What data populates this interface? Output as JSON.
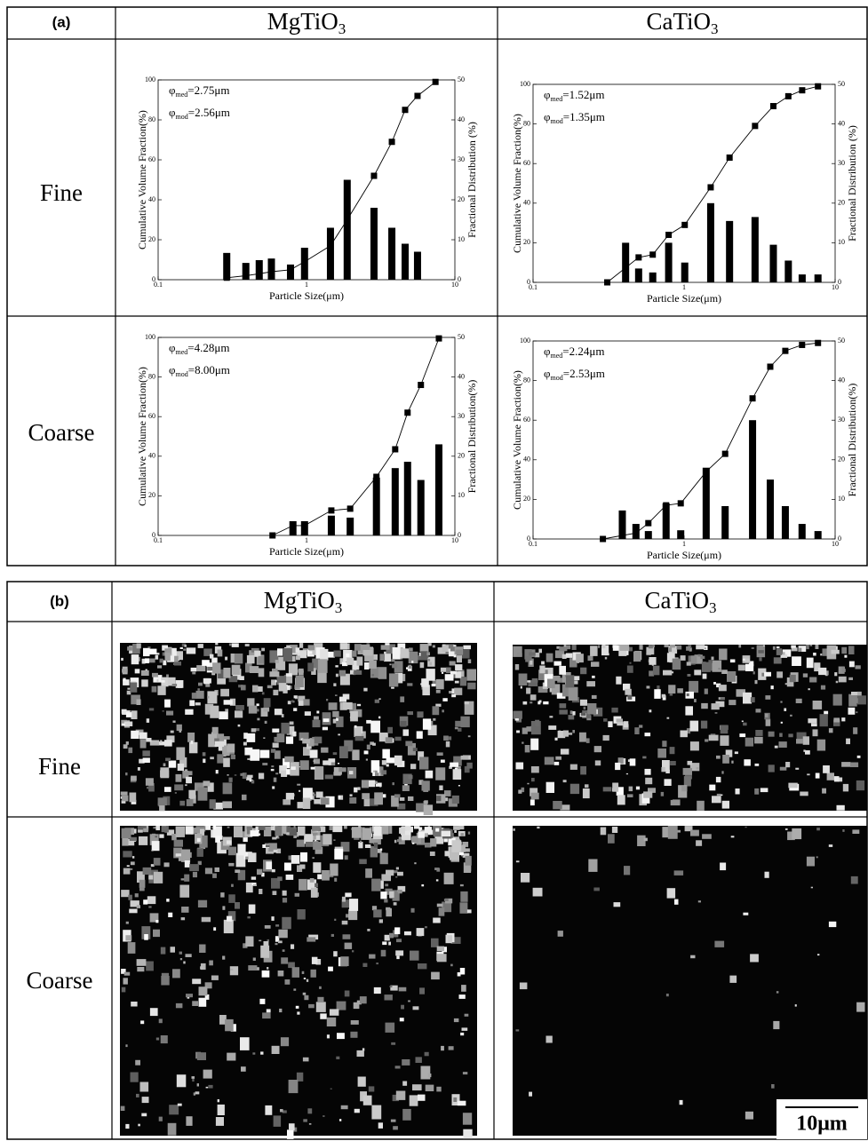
{
  "panel_a": {
    "label": "(a)",
    "columns": [
      {
        "main": "MgTiO",
        "sub": "3"
      },
      {
        "main": "CaTiO",
        "sub": "3"
      }
    ],
    "rows": [
      "Fine",
      "Coarse"
    ]
  },
  "chart_data": [
    {
      "type": "combo",
      "xlabel": "Particle Size(μm)",
      "ylabel": "Cumulative Volume Fraction(%)",
      "y2label": "Fractional Distribution (%)",
      "xscale": "log",
      "xlim": [
        0.1,
        10
      ],
      "xticks": [
        0.1,
        1,
        10
      ],
      "ylim": [
        0,
        100
      ],
      "yticks": [
        0,
        20,
        40,
        60,
        80,
        100
      ],
      "y2lim": [
        0,
        50
      ],
      "y2ticks": [
        0,
        10,
        20,
        30,
        40,
        50
      ],
      "annotations": [
        {
          "symbol": "φ",
          "sub": "med",
          "text": "=2.75μm"
        },
        {
          "symbol": "φ",
          "sub": "mod",
          "text": "=2.56μm"
        }
      ],
      "series": [
        {
          "type": "bar",
          "axis": "y2",
          "color": "#000000",
          "x": [
            0.29,
            0.39,
            0.48,
            0.58,
            0.78,
            0.97,
            1.45,
            1.88,
            2.85,
            3.76,
            4.62,
            5.6
          ],
          "values": [
            6.7,
            4.2,
            4.9,
            5.3,
            3.8,
            8,
            13,
            25,
            18,
            13,
            9,
            7
          ]
        },
        {
          "type": "line",
          "color": "#000000",
          "x": [
            0.29,
            0.39,
            0.48,
            0.58,
            0.78,
            0.97,
            1.45,
            1.88,
            2.85,
            3.76,
            4.62,
            5.6,
            7.4
          ],
          "values": [
            1,
            2,
            3,
            4,
            5,
            9,
            17,
            30,
            52,
            69,
            85,
            92,
            99
          ]
        }
      ]
    },
    {
      "type": "combo",
      "xlabel": "Particle Size(μm)",
      "ylabel": "Cumulative Volume Fraction(%)",
      "y2label": "Fractional Distribution (%)",
      "xscale": "log",
      "xlim": [
        0.1,
        10
      ],
      "xticks": [
        0.1,
        1,
        10
      ],
      "ylim": [
        0,
        100
      ],
      "yticks": [
        0,
        20,
        40,
        60,
        80,
        100
      ],
      "y2lim": [
        0,
        50
      ],
      "y2ticks": [
        0,
        10,
        20,
        30,
        40,
        50
      ],
      "annotations": [
        {
          "symbol": "φ",
          "sub": "med",
          "text": "=1.52μm"
        },
        {
          "symbol": "φ",
          "sub": "mod",
          "text": "=1.35μm"
        }
      ],
      "series": [
        {
          "type": "bar",
          "axis": "y2",
          "color": "#000000",
          "x": [
            0.41,
            0.5,
            0.62,
            0.79,
            1.01,
            1.5,
            2.0,
            2.95,
            3.9,
            4.9,
            6.05,
            7.7
          ],
          "values": [
            10,
            3.5,
            2.5,
            10,
            5,
            20,
            15.5,
            16.5,
            9.5,
            5.5,
            2,
            2
          ]
        },
        {
          "type": "line",
          "color": "#000000",
          "x": [
            0.31,
            0.5,
            0.62,
            0.79,
            1.01,
            1.5,
            2.0,
            2.95,
            3.9,
            4.9,
            6.05,
            7.7
          ],
          "values": [
            0,
            12.6,
            14,
            24,
            29,
            48,
            63,
            79,
            89,
            94,
            97,
            99
          ]
        }
      ]
    },
    {
      "type": "combo",
      "xlabel": "Particle Size(μm)",
      "ylabel": "Cumulative Volume Fraction(%)",
      "y2label": "Fractional Distribution(%)",
      "xscale": "log",
      "xlim": [
        0.1,
        10
      ],
      "xticks": [
        0.1,
        1,
        10
      ],
      "ylim": [
        0,
        100
      ],
      "yticks": [
        0,
        20,
        40,
        60,
        80,
        100
      ],
      "y2lim": [
        0,
        50
      ],
      "y2ticks": [
        0,
        10,
        20,
        30,
        40,
        50
      ],
      "annotations": [
        {
          "symbol": "φ",
          "sub": "med",
          "text": "=4.28μm"
        },
        {
          "symbol": "φ",
          "sub": "mod",
          "text": "=8.00μm"
        }
      ],
      "series": [
        {
          "type": "bar",
          "axis": "y2",
          "color": "#000000",
          "x": [
            0.81,
            0.97,
            1.47,
            1.97,
            2.96,
            3.96,
            4.8,
            5.9,
            7.8
          ],
          "values": [
            3.6,
            3.6,
            5,
            4.5,
            14.6,
            17,
            18.6,
            14,
            23
          ]
        },
        {
          "type": "line",
          "color": "#000000",
          "x": [
            0.59,
            0.81,
            0.97,
            1.47,
            1.97,
            2.96,
            3.96,
            4.8,
            5.9,
            7.8
          ],
          "values": [
            0,
            5,
            5,
            12.6,
            13.5,
            29.6,
            43.5,
            62,
            76,
            99.5
          ]
        }
      ]
    },
    {
      "type": "combo",
      "xlabel": "Particle Size(μm)",
      "ylabel": "Cumulative Volume Fraction(%)",
      "y2label": "Fractional Distribution(%)",
      "xscale": "log",
      "xlim": [
        0.1,
        10
      ],
      "xticks": [
        0.1,
        1,
        10
      ],
      "ylim": [
        0,
        100
      ],
      "yticks": [
        0,
        20,
        40,
        60,
        80,
        100
      ],
      "y2lim": [
        0,
        50
      ],
      "y2ticks": [
        0,
        10,
        20,
        30,
        40,
        50
      ],
      "annotations": [
        {
          "symbol": "φ",
          "sub": "med",
          "text": "=2.24μm"
        },
        {
          "symbol": "φ",
          "sub": "mod",
          "text": "=2.53μm"
        }
      ],
      "series": [
        {
          "type": "bar",
          "axis": "y2",
          "color": "#000000",
          "x": [
            0.39,
            0.48,
            0.58,
            0.76,
            0.95,
            1.4,
            1.87,
            2.84,
            3.72,
            4.68,
            6.04,
            7.7
          ],
          "values": [
            7.2,
            3.8,
            2,
            9,
            2.2,
            18,
            8.3,
            30,
            15,
            8.3,
            3.8,
            2
          ]
        },
        {
          "type": "line",
          "color": "#000000",
          "x": [
            0.29,
            0.48,
            0.58,
            0.76,
            0.95,
            1.4,
            1.87,
            2.84,
            3.72,
            4.68,
            6.04,
            7.7
          ],
          "values": [
            0,
            3,
            8,
            17,
            18,
            34,
            43,
            71,
            87,
            95,
            98,
            99
          ]
        }
      ]
    }
  ],
  "panel_b": {
    "label": "(b)",
    "columns": [
      {
        "main": "MgTiO",
        "sub": "3"
      },
      {
        "main": "CaTiO",
        "sub": "3"
      }
    ],
    "rows": [
      "Fine",
      "Coarse"
    ],
    "scale_bar": "10μm"
  }
}
